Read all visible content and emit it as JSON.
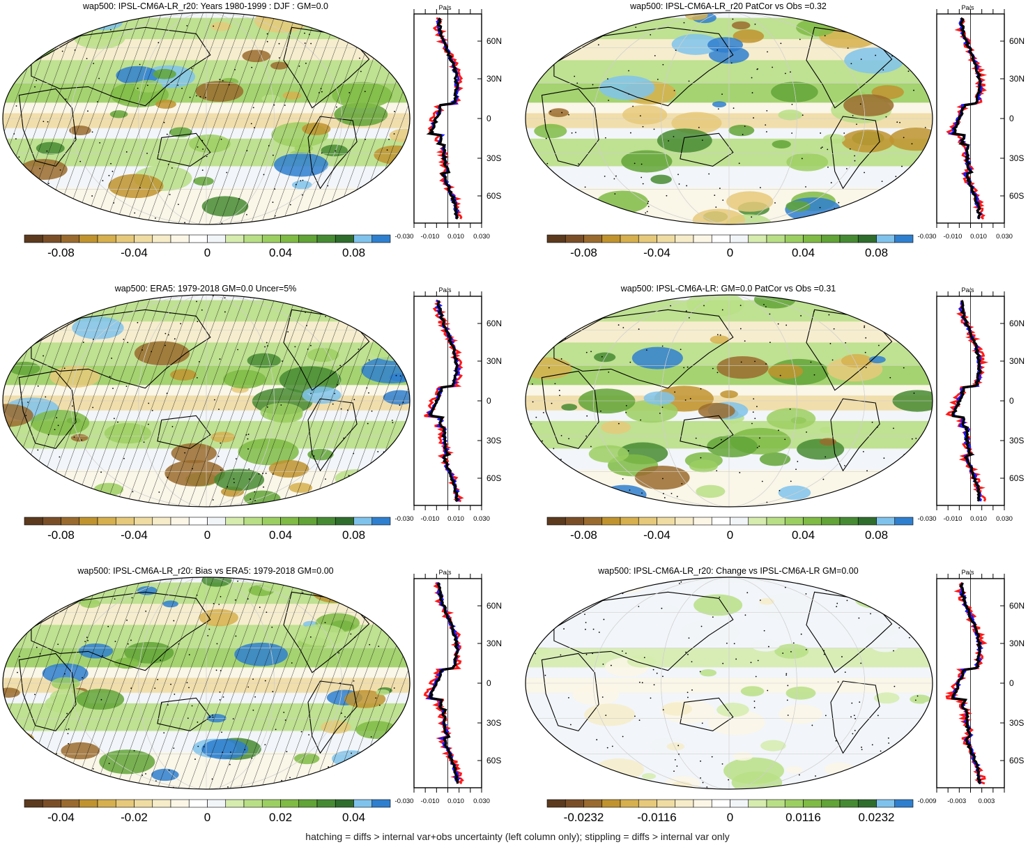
{
  "palette": [
    "#5c3a1e",
    "#7a4f28",
    "#9a6b2e",
    "#c0932f",
    "#d6b04e",
    "#e6c97a",
    "#efdca3",
    "#f6ecc9",
    "#fbf6e6",
    "#ffffff",
    "#f2f5f8",
    "#d5ecae",
    "#b9df86",
    "#9ccf62",
    "#7fbb45",
    "#62a437",
    "#468b33",
    "#2f6d2d",
    "#7fc3ec",
    "#2f7fcf"
  ],
  "profile_colors": {
    "model": "#1a1aff",
    "obs": "#ff1a1a",
    "ref": "#000000"
  },
  "footer": "hatching = diffs > internal var+obs uncertainty (left column only); stippling = diffs > internal var only",
  "panels": [
    {
      "title": "wap500: IPSL-CM6A-LR_r20: Years 1980-1999 : DJF : GM=0.0",
      "colorbar_ticks": [
        "-0.08",
        "-0.04",
        "0",
        "0.04",
        "0.08"
      ],
      "profile_unit": "Pa/s",
      "profile_xticks": [
        "-0.030",
        "-0.010",
        "0.010",
        "0.030"
      ],
      "lat_labels": [
        "60N",
        "30N",
        "0",
        "30S",
        "60S"
      ],
      "hatched": true
    },
    {
      "title": "wap500: IPSL-CM6A-LR_r20 PatCor vs Obs =0.32",
      "colorbar_ticks": [
        "-0.08",
        "-0.04",
        "0",
        "0.04",
        "0.08"
      ],
      "profile_unit": "Pa/s",
      "profile_xticks": [
        "-0.030",
        "-0.010",
        "0.010",
        "0.030"
      ],
      "lat_labels": [
        "60N",
        "30N",
        "0",
        "30S",
        "60S"
      ],
      "hatched": false
    },
    {
      "title": "wap500: ERA5: 1979-2018 GM=0.0 Uncer=5%",
      "colorbar_ticks": [
        "-0.08",
        "-0.04",
        "0",
        "0.04",
        "0.08"
      ],
      "profile_unit": "Pa/s",
      "profile_xticks": [
        "-0.030",
        "-0.010",
        "0.010",
        "0.030"
      ],
      "lat_labels": [
        "60N",
        "30N",
        "0",
        "30S",
        "60S"
      ],
      "hatched": true
    },
    {
      "title": "wap500: IPSL-CM6A-LR: GM=0.0 PatCor vs Obs =0.31",
      "colorbar_ticks": [
        "-0.08",
        "-0.04",
        "0",
        "0.04",
        "0.08"
      ],
      "profile_unit": "Pa/s",
      "profile_xticks": [
        "-0.030",
        "-0.010",
        "0.010",
        "0.030"
      ],
      "lat_labels": [
        "60N",
        "30N",
        "0",
        "30S",
        "60S"
      ],
      "hatched": false
    },
    {
      "title": "wap500: IPSL-CM6A-LR_r20: Bias vs ERA5: 1979-2018 GM=0.00",
      "colorbar_ticks": [
        "-0.04",
        "-0.02",
        "0",
        "0.02",
        "0.04"
      ],
      "profile_unit": "Pa/s",
      "profile_xticks": [
        "-0.030",
        "-0.010",
        "0.010",
        "0.030"
      ],
      "lat_labels": [
        "60N",
        "30N",
        "0",
        "30S",
        "60S"
      ],
      "hatched": true
    },
    {
      "title": "wap500: IPSL-CM6A-LR_r20: Change vs IPSL-CM6A-LR GM=0.00",
      "colorbar_ticks": [
        "-0.0232",
        "-0.0116",
        "0",
        "0.0116",
        "0.0232"
      ],
      "profile_unit": "Pa/s",
      "profile_xticks": [
        "-0.009",
        "-0.003",
        "0.003"
      ],
      "lat_labels": [
        "60N",
        "30N",
        "0",
        "30S",
        "60S"
      ],
      "hatched": false
    }
  ]
}
